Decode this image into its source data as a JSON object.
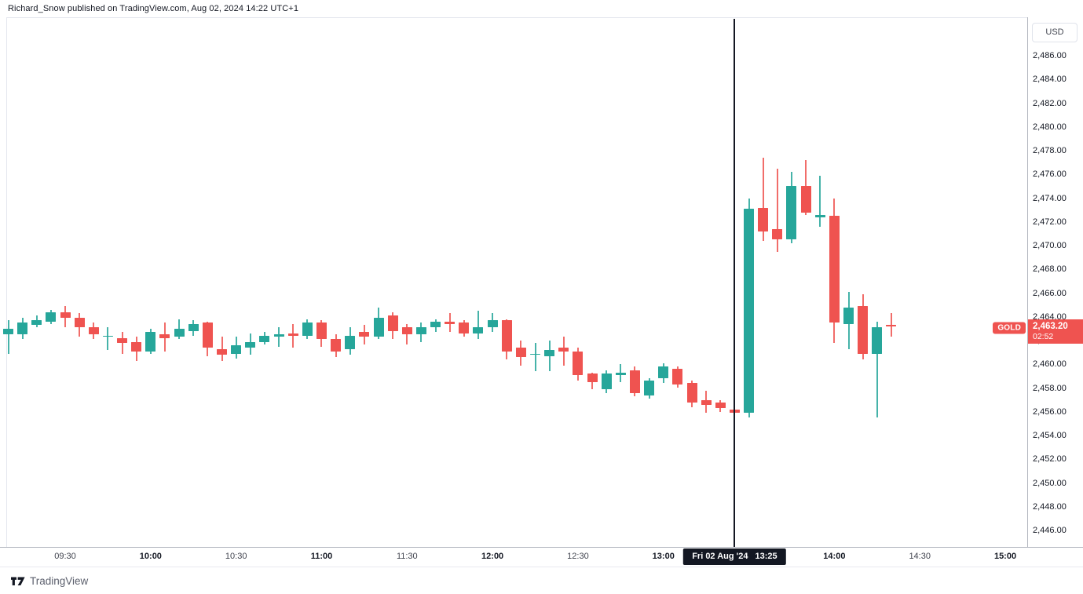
{
  "header": {
    "publish_line": "Richard_Snow published on TradingView.com, Aug 02, 2024 14:22 UTC+1"
  },
  "footer": {
    "logo_text": "TradingView"
  },
  "price_axis": {
    "currency_button": "USD",
    "labels": [
      {
        "label": "2,486.00",
        "value": 2486
      },
      {
        "label": "2,484.00",
        "value": 2484
      },
      {
        "label": "2,482.00",
        "value": 2482
      },
      {
        "label": "2,480.00",
        "value": 2480
      },
      {
        "label": "2,478.00",
        "value": 2478
      },
      {
        "label": "2,476.00",
        "value": 2476
      },
      {
        "label": "2,474.00",
        "value": 2474
      },
      {
        "label": "2,472.00",
        "value": 2472
      },
      {
        "label": "2,470.00",
        "value": 2470
      },
      {
        "label": "2,468.00",
        "value": 2468
      },
      {
        "label": "2,466.00",
        "value": 2466
      },
      {
        "label": "2,464.00",
        "value": 2464
      },
      {
        "label": "2,462.00",
        "value": 2462
      },
      {
        "label": "2,460.00",
        "value": 2460
      },
      {
        "label": "2,458.00",
        "value": 2458
      },
      {
        "label": "2,456.00",
        "value": 2456
      },
      {
        "label": "2,454.00",
        "value": 2454
      },
      {
        "label": "2,452.00",
        "value": 2452
      },
      {
        "label": "2,450.00",
        "value": 2450
      },
      {
        "label": "2,448.00",
        "value": 2448
      },
      {
        "label": "2,446.00",
        "value": 2446
      }
    ]
  },
  "time_axis": {
    "ticks": [
      {
        "label": "09:30",
        "time": "09:30",
        "bold": false
      },
      {
        "label": "10:00",
        "time": "10:00",
        "bold": true
      },
      {
        "label": "10:30",
        "time": "10:30",
        "bold": false
      },
      {
        "label": "11:00",
        "time": "11:00",
        "bold": true
      },
      {
        "label": "11:30",
        "time": "11:30",
        "bold": false
      },
      {
        "label": "12:00",
        "time": "12:00",
        "bold": true
      },
      {
        "label": "12:30",
        "time": "12:30",
        "bold": false
      },
      {
        "label": "13:00",
        "time": "13:00",
        "bold": true
      },
      {
        "label": "14:00",
        "time": "14:00",
        "bold": true
      },
      {
        "label": "14:30",
        "time": "14:30",
        "bold": false
      },
      {
        "label": "15:00",
        "time": "15:00",
        "bold": true
      }
    ]
  },
  "crosshair": {
    "date_label": "Fri 02 Aug '24",
    "time_label": "13:25",
    "marker_time": "13:25"
  },
  "price_line": {
    "symbol": "GOLD",
    "price_label": "2,463.20",
    "countdown": "02:52",
    "value": 2463.2
  },
  "colors": {
    "up": "#26a69a",
    "down": "#ef5350",
    "crosshair": "#131722",
    "time_badge_bg": "#131722",
    "price_badge_bg": "#ef5350",
    "badge_text": "#ffffff",
    "axis_text": "#131722"
  },
  "chart_data": {
    "type": "candlestick",
    "symbol": "GOLD",
    "currency": "USD",
    "interval_minutes": 5,
    "grid": false,
    "legend": false,
    "ylim": [
      2446,
      2486
    ],
    "x_range": [
      "09:10",
      "15:00"
    ],
    "last_price": 2463.2,
    "event_marker": {
      "time": "13:25",
      "label": "Fri 02 Aug '24  13:25"
    },
    "candles_format": [
      "time",
      "open",
      "high",
      "low",
      "close"
    ],
    "candles": [
      [
        "09:10",
        2462.5,
        2463.7,
        2460.9,
        2463.0
      ],
      [
        "09:15",
        2462.5,
        2463.9,
        2462.1,
        2463.5
      ],
      [
        "09:20",
        2463.3,
        2464.1,
        2463.1,
        2463.7
      ],
      [
        "09:25",
        2463.6,
        2464.6,
        2463.4,
        2464.4
      ],
      [
        "09:30",
        2464.4,
        2464.9,
        2463.1,
        2463.9
      ],
      [
        "09:35",
        2463.9,
        2464.3,
        2462.3,
        2463.1
      ],
      [
        "09:40",
        2463.1,
        2463.5,
        2462.1,
        2462.5
      ],
      [
        "09:45",
        2462.3,
        2463.1,
        2461.2,
        2462.4
      ],
      [
        "09:50",
        2462.2,
        2462.7,
        2460.9,
        2461.8
      ],
      [
        "09:55",
        2461.9,
        2462.3,
        2460.3,
        2461.1
      ],
      [
        "10:00",
        2461.1,
        2463.0,
        2460.9,
        2462.7
      ],
      [
        "10:05",
        2462.5,
        2463.5,
        2461.1,
        2462.2
      ],
      [
        "10:10",
        2462.3,
        2463.8,
        2462.1,
        2463.0
      ],
      [
        "10:15",
        2462.8,
        2463.7,
        2462.4,
        2463.4
      ],
      [
        "10:20",
        2463.5,
        2463.6,
        2460.7,
        2461.4
      ],
      [
        "10:25",
        2461.3,
        2462.3,
        2460.3,
        2460.8
      ],
      [
        "10:30",
        2460.9,
        2462.3,
        2460.5,
        2461.6
      ],
      [
        "10:35",
        2461.4,
        2462.6,
        2460.8,
        2461.9
      ],
      [
        "10:40",
        2461.9,
        2462.7,
        2461.7,
        2462.4
      ],
      [
        "10:45",
        2462.3,
        2463.1,
        2461.5,
        2462.5
      ],
      [
        "10:50",
        2462.6,
        2463.4,
        2461.4,
        2462.4
      ],
      [
        "10:55",
        2462.4,
        2463.8,
        2462.1,
        2463.5
      ],
      [
        "11:00",
        2463.5,
        2463.7,
        2461.5,
        2462.1
      ],
      [
        "11:05",
        2462.1,
        2462.5,
        2460.6,
        2461.1
      ],
      [
        "11:10",
        2461.3,
        2463.1,
        2460.8,
        2462.4
      ],
      [
        "11:15",
        2462.7,
        2463.3,
        2461.7,
        2462.3
      ],
      [
        "11:20",
        2462.3,
        2464.8,
        2462.1,
        2463.9
      ],
      [
        "11:25",
        2464.1,
        2464.4,
        2462.1,
        2462.8
      ],
      [
        "11:30",
        2463.1,
        2463.4,
        2461.7,
        2462.5
      ],
      [
        "11:35",
        2462.5,
        2463.5,
        2461.9,
        2463.1
      ],
      [
        "11:40",
        2463.1,
        2463.8,
        2462.7,
        2463.6
      ],
      [
        "11:45",
        2463.6,
        2464.3,
        2462.7,
        2463.4
      ],
      [
        "11:50",
        2463.5,
        2463.7,
        2462.3,
        2462.6
      ],
      [
        "11:55",
        2462.6,
        2464.5,
        2462.1,
        2463.1
      ],
      [
        "12:00",
        2463.1,
        2464.3,
        2462.7,
        2463.7
      ],
      [
        "12:05",
        2463.7,
        2463.8,
        2460.4,
        2461.1
      ],
      [
        "12:10",
        2461.4,
        2462.0,
        2459.9,
        2460.6
      ],
      [
        "12:15",
        2460.8,
        2461.8,
        2459.4,
        2460.9
      ],
      [
        "12:20",
        2460.7,
        2462.0,
        2459.4,
        2461.2
      ],
      [
        "12:25",
        2461.4,
        2462.3,
        2459.9,
        2461.1
      ],
      [
        "12:30",
        2461.1,
        2461.4,
        2458.6,
        2459.1
      ],
      [
        "12:35",
        2459.2,
        2459.3,
        2457.9,
        2458.5
      ],
      [
        "12:40",
        2457.9,
        2459.5,
        2457.6,
        2459.2
      ],
      [
        "12:45",
        2459.1,
        2460.0,
        2458.5,
        2459.3
      ],
      [
        "12:50",
        2459.5,
        2459.8,
        2457.3,
        2457.6
      ],
      [
        "12:55",
        2457.4,
        2458.8,
        2457.1,
        2458.6
      ],
      [
        "13:00",
        2458.8,
        2460.1,
        2458.4,
        2459.8
      ],
      [
        "13:05",
        2459.6,
        2459.8,
        2458.0,
        2458.3
      ],
      [
        "13:10",
        2458.4,
        2458.6,
        2456.4,
        2456.8
      ],
      [
        "13:15",
        2457.0,
        2457.8,
        2455.9,
        2456.6
      ],
      [
        "13:20",
        2456.8,
        2457.0,
        2456.0,
        2456.3
      ],
      [
        "13:25",
        2456.2,
        2456.4,
        2455.7,
        2455.9
      ],
      [
        "13:30",
        2455.9,
        2474.0,
        2455.5,
        2473.1
      ],
      [
        "13:35",
        2473.2,
        2477.4,
        2470.4,
        2471.2
      ],
      [
        "13:40",
        2471.4,
        2476.5,
        2469.5,
        2470.5
      ],
      [
        "13:45",
        2470.5,
        2476.2,
        2470.2,
        2475.0
      ],
      [
        "13:50",
        2475.0,
        2477.2,
        2472.6,
        2472.8
      ],
      [
        "13:55",
        2472.4,
        2475.9,
        2471.6,
        2472.6
      ],
      [
        "14:00",
        2472.5,
        2474.0,
        2461.8,
        2463.5
      ],
      [
        "14:05",
        2463.4,
        2466.1,
        2461.3,
        2464.8
      ],
      [
        "14:10",
        2464.9,
        2465.9,
        2460.4,
        2460.9
      ],
      [
        "14:15",
        2460.9,
        2463.6,
        2455.5,
        2463.1
      ],
      [
        "14:20",
        2463.3,
        2464.3,
        2462.3,
        2463.2
      ]
    ]
  }
}
